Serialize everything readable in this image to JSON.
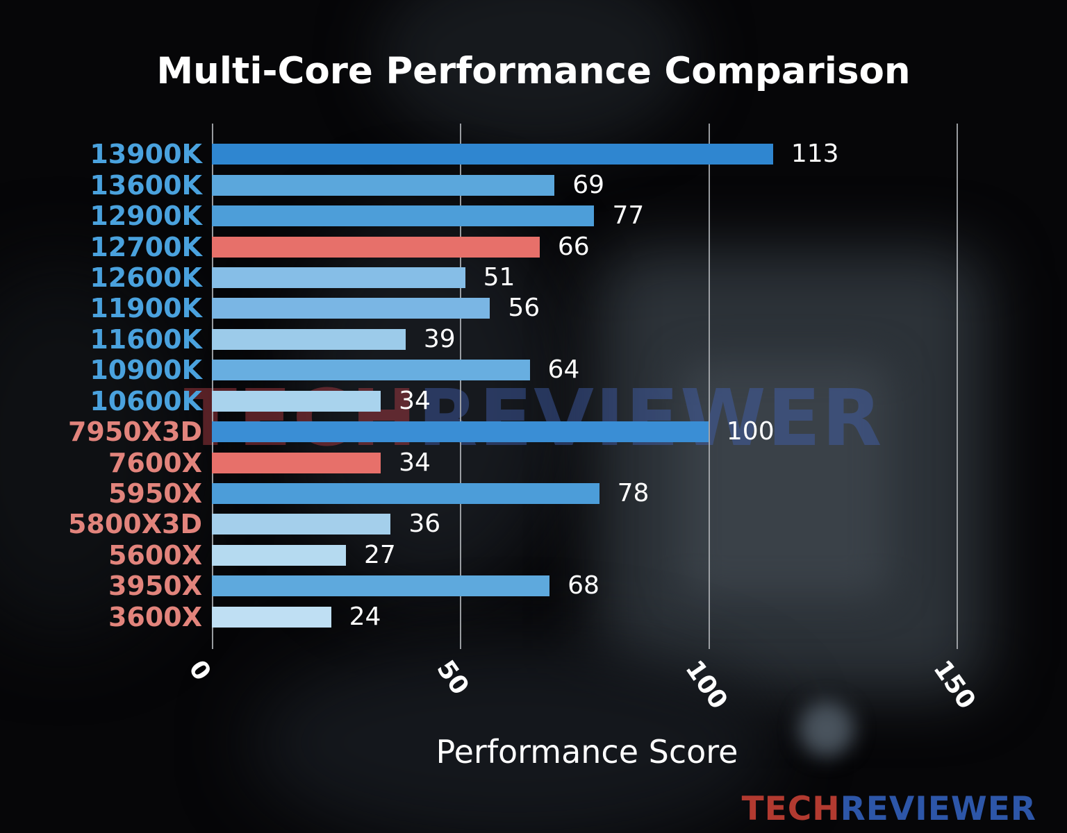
{
  "title": "Multi-Core Performance Comparison",
  "watermark": {
    "tech": "TECH",
    "reviewer": "REVIEWER"
  },
  "logo": {
    "tech": "TECH",
    "reviewer": "REVIEWER"
  },
  "colors": {
    "title": "#ffffff",
    "value_label": "#ffffff",
    "tick_label": "#ffffff",
    "grid": "#a8acb0",
    "intel_label": "#4aa2de",
    "amd_label": "#e2847c",
    "highlight_bar": "#e7706a"
  },
  "chart_data": {
    "type": "bar",
    "orientation": "horizontal",
    "title": "Multi-Core Performance Comparison",
    "xlabel": "Performance Score",
    "ylabel": "",
    "xlim": [
      0,
      157.5
    ],
    "xticks": [
      "0",
      "50",
      "100",
      "150"
    ],
    "grid": true,
    "legend_position": "none",
    "categories": [
      "13900K",
      "13600K",
      "12900K",
      "12700K",
      "12600K",
      "11900K",
      "11600K",
      "10900K",
      "10600K",
      "7950X3D",
      "7600X",
      "5950X",
      "5800X3D",
      "5600X",
      "3950X",
      "3600X"
    ],
    "values": [
      113,
      69,
      77,
      66,
      51,
      56,
      39,
      64,
      34,
      100,
      34,
      78,
      36,
      27,
      68,
      24
    ],
    "bar_colors": [
      "#2f86d0",
      "#5ba7dc",
      "#4d9ed9",
      "#e7706a",
      "#86bee7",
      "#7ab6e4",
      "#9ccbea",
      "#68aee0",
      "#a9d3ed",
      "#3a8ed5",
      "#e7706a",
      "#4c9dd9",
      "#a4cfeb",
      "#b5daf0",
      "#5ea9dd",
      "#bfdff3"
    ],
    "label_colors": [
      "#4aa2de",
      "#4aa2de",
      "#4aa2de",
      "#4aa2de",
      "#4aa2de",
      "#4aa2de",
      "#4aa2de",
      "#4aa2de",
      "#4aa2de",
      "#e2847c",
      "#e2847c",
      "#e2847c",
      "#e2847c",
      "#e2847c",
      "#e2847c",
      "#e2847c"
    ]
  }
}
